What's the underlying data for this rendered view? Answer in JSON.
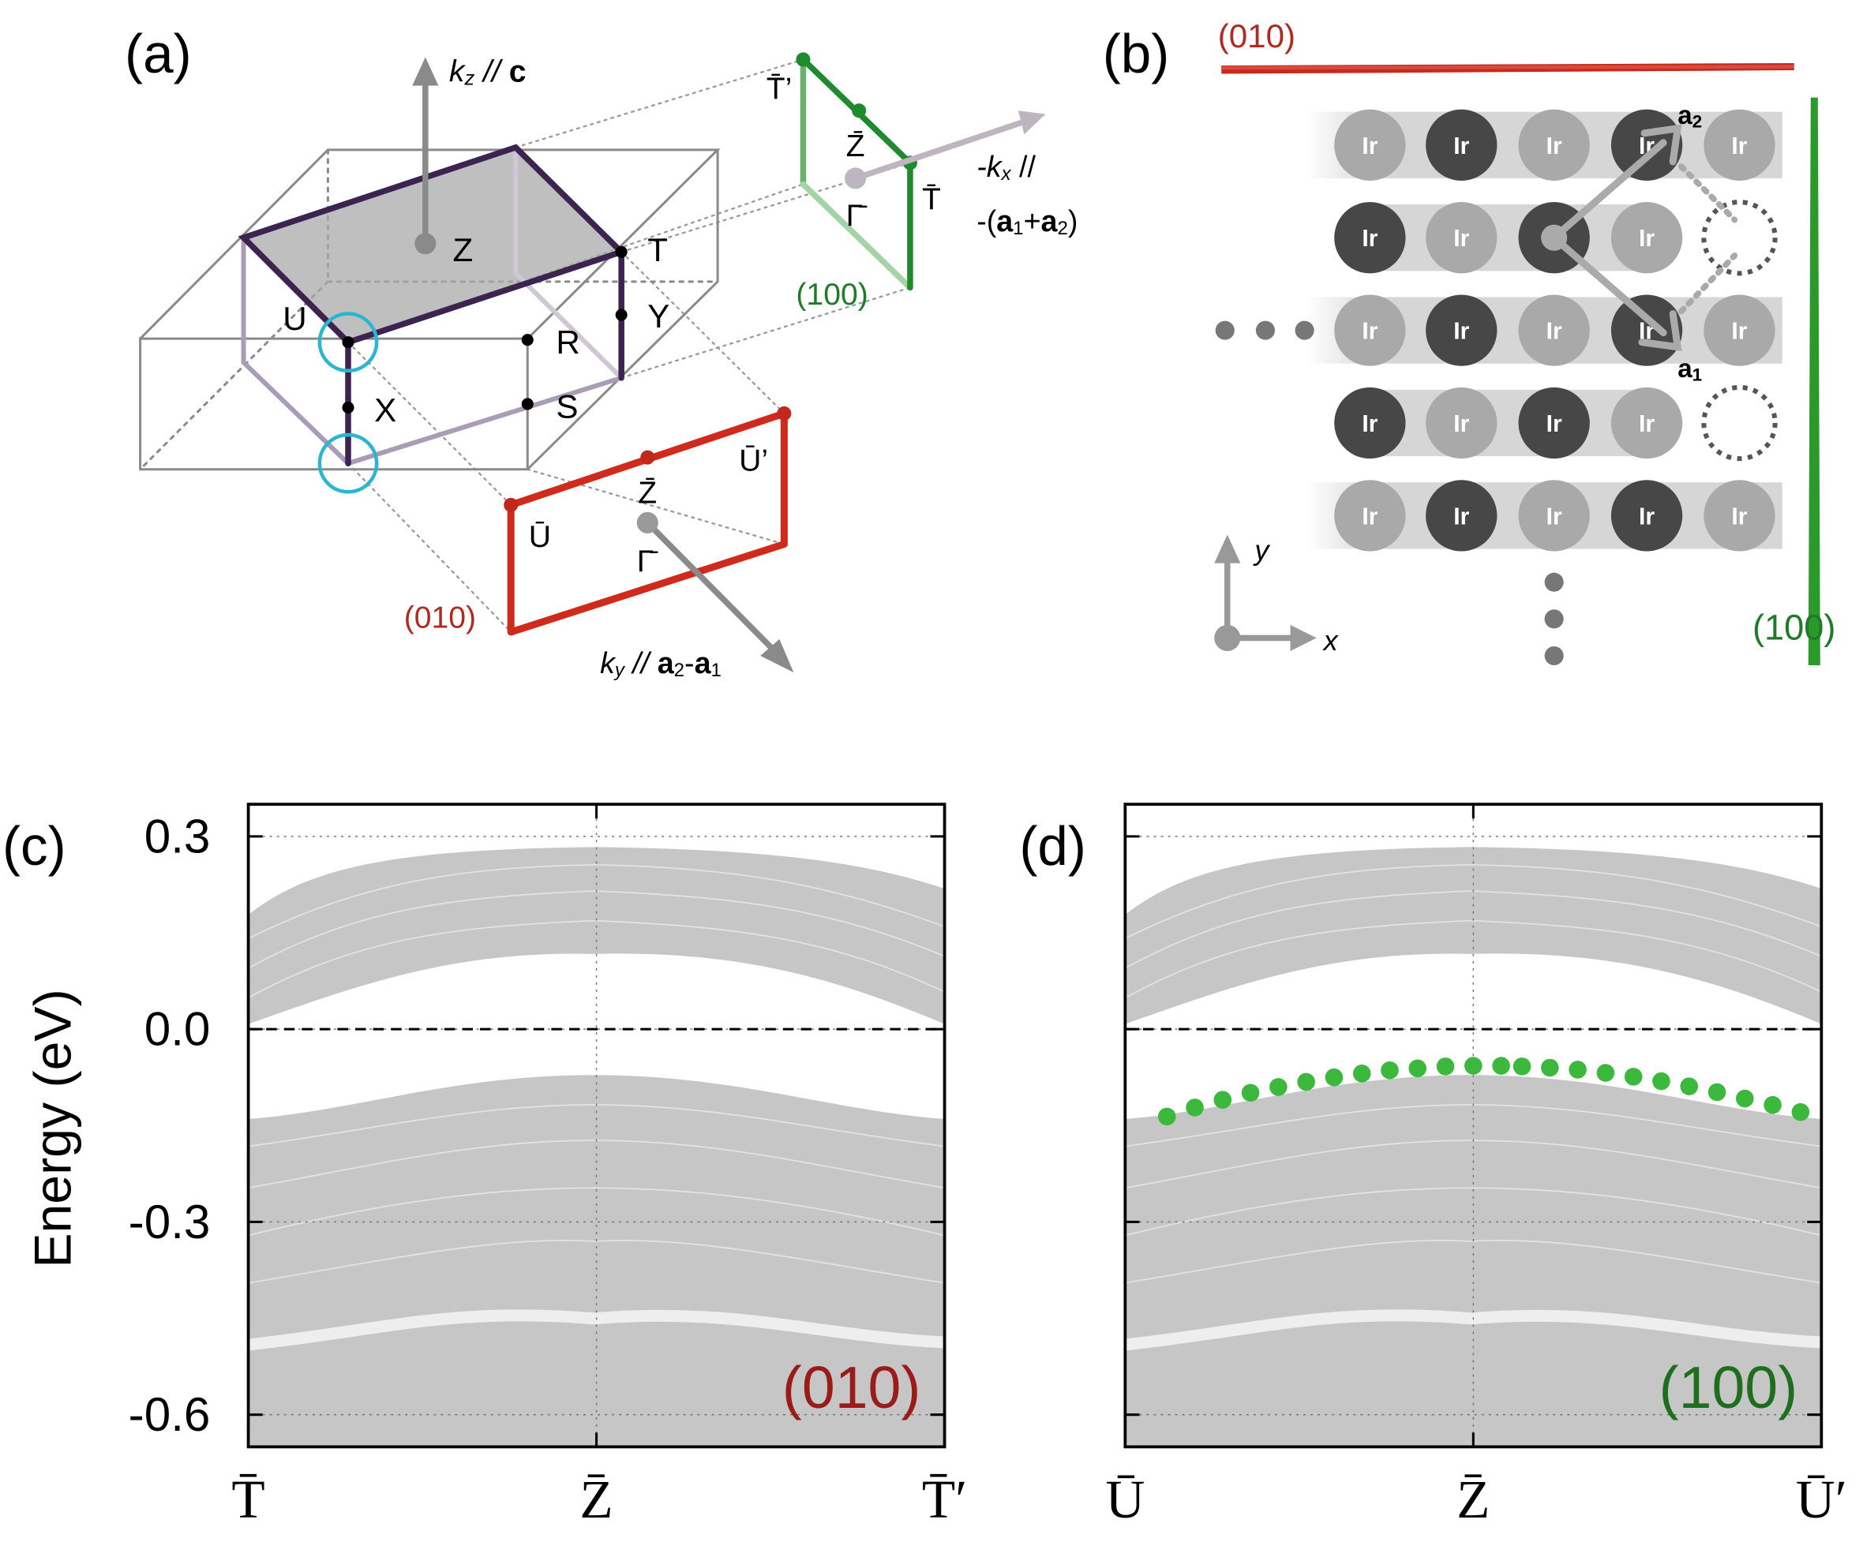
{
  "panel_labels": [
    "(a)",
    "(b)",
    "(c)",
    "(d)"
  ],
  "panel_a": {
    "kz": [
      "k",
      "z",
      " // ",
      "c"
    ],
    "bulk_points": [
      "Z",
      "T",
      "U",
      "Y",
      "R",
      "X",
      "S"
    ],
    "surface_100": {
      "points": [
        "T̄’",
        "Z̄",
        "Γ̄",
        "T̄"
      ],
      "kx_line1": [
        "-k",
        "x",
        " //"
      ],
      "kx_line2": [
        "-(",
        "a",
        "1",
        "+",
        "a",
        "2",
        ")"
      ],
      "label": "(100)"
    },
    "surface_010": {
      "points": [
        "Ū",
        "Z̄",
        "Γ̄",
        "Ū’"
      ],
      "ky": [
        "k",
        "y",
        " // ",
        "a",
        "2",
        "-",
        "a",
        "1"
      ],
      "label": "(010)"
    }
  },
  "panel_b": {
    "edge_010": "(010)",
    "edge_100": "(100)",
    "atom": "Ir",
    "a2": [
      "a",
      "2"
    ],
    "a1": [
      "a",
      "1"
    ],
    "y": "y",
    "x": "x"
  },
  "chart_data": [
    {
      "type": "line",
      "annotation": "(010)",
      "annotation_color": "#9b1b1b",
      "y_label": "Energy (eV)",
      "ylim": [
        -0.65,
        0.35
      ],
      "yticks": [
        0.3,
        {
          "value": 0,
          "label": "0.0"
        },
        -0.3,
        -0.6
      ],
      "ytick_labels": true,
      "xlim": [
        0,
        1
      ],
      "xticks": [
        {
          "value": 0,
          "label": "T̄"
        },
        {
          "value": 0.5,
          "label": "Z̄"
        },
        {
          "value": 1,
          "label": "T̄′"
        }
      ],
      "grid": true,
      "fermi_level": 0
    },
    {
      "type": "scatter",
      "annotation": "(100)",
      "annotation_color": "#1f6e1f",
      "ylim": [
        -0.65,
        0.35
      ],
      "yticks": [
        0.3,
        0,
        -0.3,
        -0.6
      ],
      "ytick_labels": false,
      "xlim": [
        0,
        1
      ],
      "xticks": [
        {
          "value": 0,
          "label": "Ū"
        },
        {
          "value": 0.5,
          "label": "Z̄"
        },
        {
          "value": 1,
          "label": "Ū′"
        }
      ],
      "grid": true,
      "fermi_level": 0,
      "series": [
        {
          "color": "#3cb83c",
          "x": [
            0.06,
            0.1,
            0.14,
            0.18,
            0.22,
            0.26,
            0.3,
            0.34,
            0.38,
            0.42,
            0.46,
            0.5,
            0.54,
            0.57,
            0.61,
            0.65,
            0.69,
            0.73,
            0.77,
            0.81,
            0.85,
            0.89,
            0.93,
            0.97
          ],
          "values": [
            -0.136,
            -0.122,
            -0.11,
            -0.099,
            -0.09,
            -0.082,
            -0.075,
            -0.069,
            -0.064,
            -0.061,
            -0.058,
            -0.057,
            -0.057,
            -0.058,
            -0.06,
            -0.063,
            -0.068,
            -0.074,
            -0.081,
            -0.089,
            -0.098,
            -0.108,
            -0.118,
            -0.129
          ]
        }
      ]
    }
  ]
}
